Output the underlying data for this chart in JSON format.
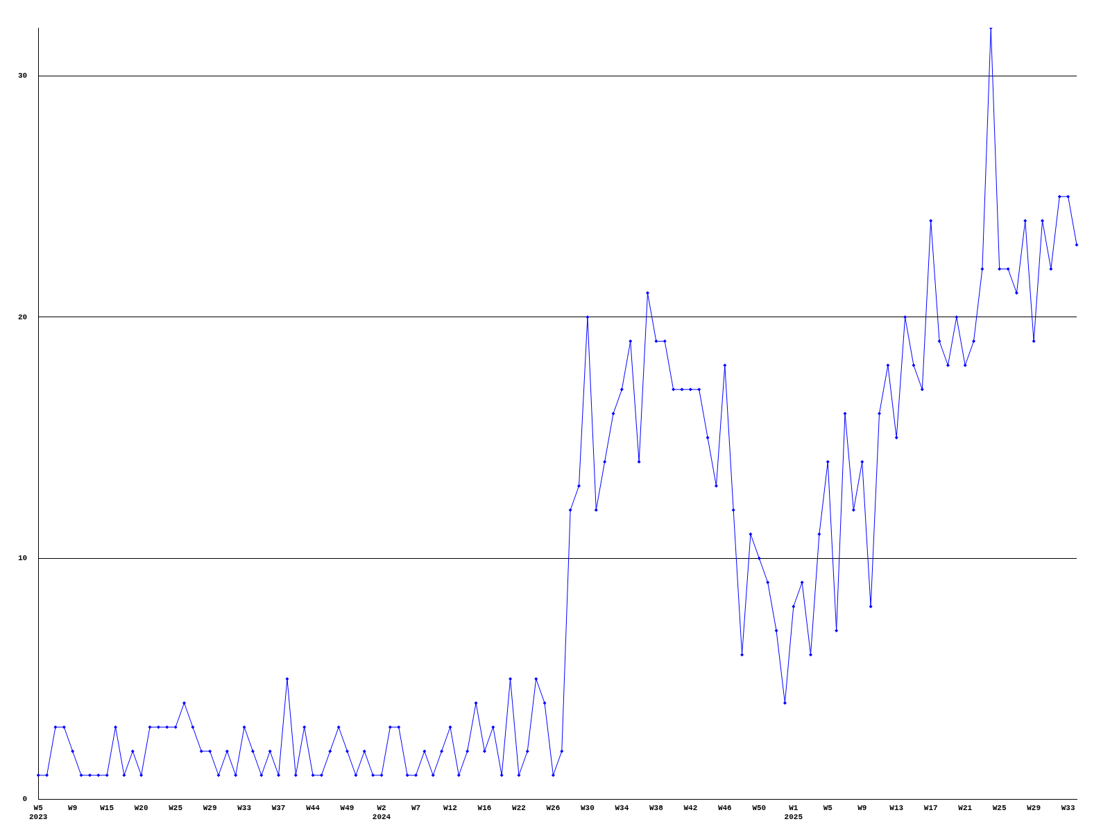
{
  "chart_data": {
    "type": "line",
    "categories": [
      "W5\n2023",
      null,
      null,
      null,
      "W9",
      null,
      null,
      null,
      "W15",
      null,
      null,
      null,
      "W20",
      null,
      null,
      null,
      "W25",
      null,
      null,
      null,
      "W29",
      null,
      null,
      null,
      "W33",
      null,
      null,
      null,
      "W37",
      null,
      null,
      null,
      "W44",
      null,
      null,
      null,
      "W49",
      null,
      null,
      null,
      "W2\n2024",
      null,
      null,
      null,
      "W7",
      null,
      null,
      null,
      "W12",
      null,
      null,
      null,
      "W16",
      null,
      null,
      null,
      "W22",
      null,
      null,
      null,
      "W26",
      null,
      null,
      null,
      "W30",
      null,
      null,
      null,
      "W34",
      null,
      null,
      null,
      "W38",
      null,
      null,
      null,
      "W42",
      null,
      null,
      null,
      "W46",
      null,
      null,
      null,
      "W50",
      null,
      null,
      null,
      "W1\n2025",
      null,
      null,
      null,
      "W5",
      null,
      null,
      null,
      "W9",
      null,
      null,
      null,
      "W13",
      null,
      null,
      null,
      "W17",
      null,
      null,
      null,
      "W21",
      null,
      null,
      null,
      "W25",
      null,
      null,
      null,
      "W29",
      null,
      null,
      null,
      "W33",
      null
    ],
    "series": [
      {
        "color": "#0000ff",
        "values": [
          1,
          1,
          3,
          3,
          2,
          1,
          1,
          1,
          1,
          3,
          1,
          2,
          1,
          3,
          3,
          3,
          3,
          4,
          3,
          2,
          2,
          1,
          2,
          1,
          3,
          2,
          1,
          2,
          1,
          5,
          1,
          3,
          1,
          1,
          2,
          3,
          2,
          1,
          2,
          1,
          1,
          3,
          3,
          1,
          1,
          2,
          1,
          2,
          3,
          1,
          2,
          4,
          2,
          3,
          1,
          5,
          1,
          2,
          5,
          4,
          1,
          2,
          12,
          13,
          20,
          12,
          14,
          16,
          17,
          19,
          14,
          21,
          19,
          19,
          17,
          17,
          17,
          17,
          15,
          13,
          18,
          12,
          6,
          11,
          10,
          9,
          7,
          4,
          8,
          9,
          6,
          11,
          14,
          7,
          16,
          12,
          14,
          8,
          16,
          18,
          15,
          20,
          18,
          17,
          24,
          19,
          18,
          20,
          18,
          19,
          22,
          32,
          22,
          22,
          21,
          24,
          19,
          24,
          22,
          25,
          25,
          23
        ]
      }
    ],
    "ylim": [
      0,
      32
    ],
    "yticks": [
      0,
      10,
      20,
      30
    ],
    "grid": "y",
    "legend": false,
    "marker": "diamond",
    "line_style": "solid"
  }
}
